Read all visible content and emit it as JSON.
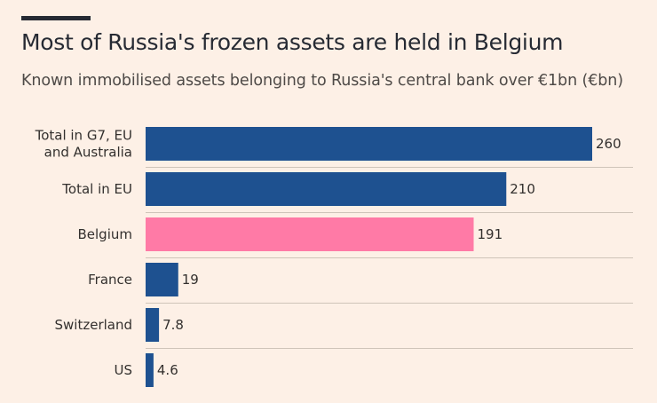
{
  "header": {
    "title": "Most of Russia's frozen assets are held in Belgium",
    "subtitle": "Known immobilised assets belonging to Russia's central bank over €1bn (€bn)"
  },
  "colors": {
    "background": "#fdf0e6",
    "bar_default": "#1e5190",
    "bar_highlight": "#ff7aa6",
    "separator": "#cfc4b9",
    "topbar": "#262a33"
  },
  "chart_data": {
    "type": "bar",
    "orientation": "horizontal",
    "title": "Most of Russia's frozen assets are held in Belgium",
    "subtitle": "Known immobilised assets belonging to Russia's central bank over €1bn (€bn)",
    "xlabel": "",
    "ylabel": "",
    "xlim": [
      0,
      260
    ],
    "grid": false,
    "highlight_index": 2,
    "categories": [
      [
        "Total in G7, EU",
        "and Australia"
      ],
      [
        "Total in EU"
      ],
      [
        "Belgium"
      ],
      [
        "France"
      ],
      [
        "Switzerland"
      ],
      [
        "US"
      ]
    ],
    "values": [
      260,
      210,
      191,
      19,
      7.8,
      4.6
    ],
    "labels": [
      "260",
      "210",
      "191",
      "19",
      "7.8",
      "4.6"
    ]
  }
}
